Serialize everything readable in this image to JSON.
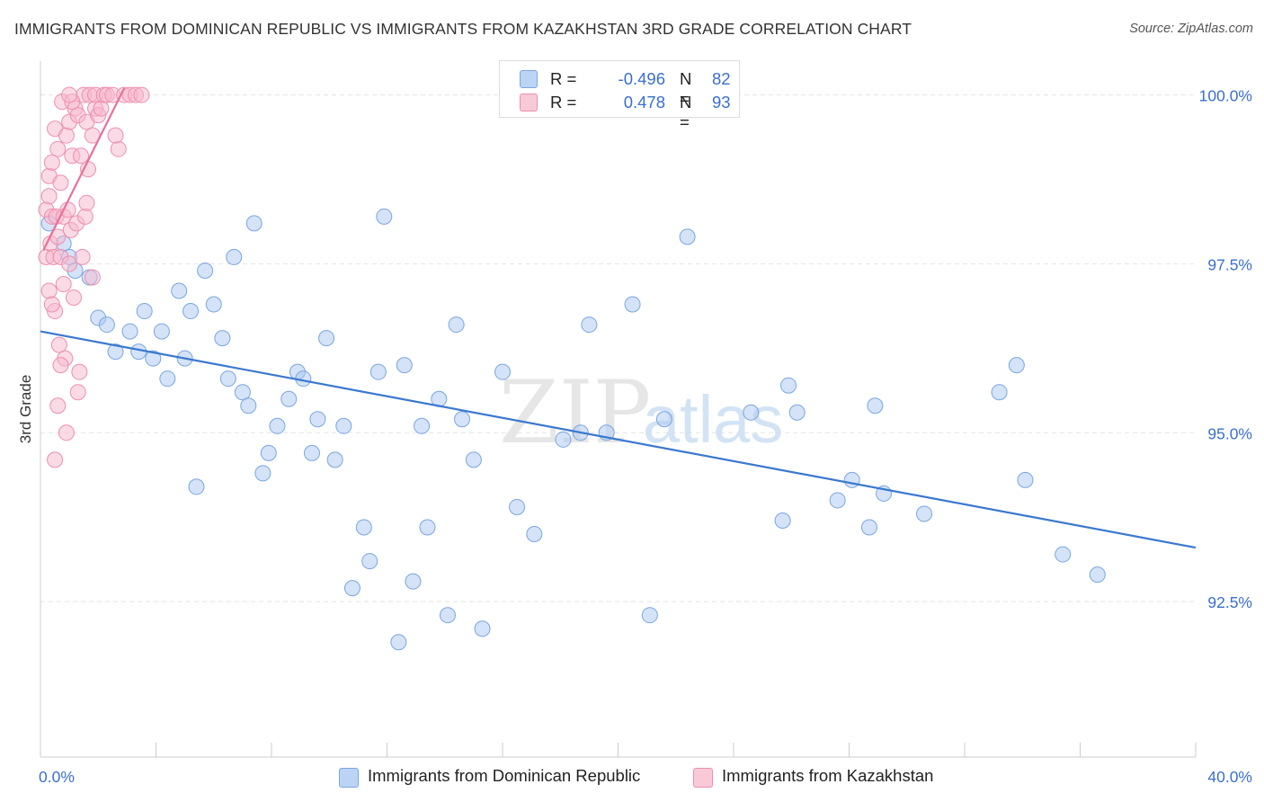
{
  "title": "IMMIGRANTS FROM DOMINICAN REPUBLIC VS IMMIGRANTS FROM KAZAKHSTAN 3RD GRADE CORRELATION CHART",
  "source": "Source: ZipAtlas.com",
  "watermark": {
    "zip": "ZIP",
    "atlas": "atlas"
  },
  "legend": {
    "r_label": "R =",
    "n_label": "N =",
    "rows": [
      {
        "r": "-0.496",
        "n": "82",
        "color": "#a9c8f2"
      },
      {
        "r": "0.478",
        "n": "93",
        "color": "#f6b8cc"
      }
    ]
  },
  "chart_data": {
    "type": "scatter",
    "title": "IMMIGRANTS FROM DOMINICAN REPUBLIC VS IMMIGRANTS FROM KAZAKHSTAN 3RD GRADE CORRELATION CHART",
    "xlabel": "",
    "ylabel": "3rd Grade",
    "xlim": [
      0,
      40
    ],
    "ylim": [
      90.2,
      100.5
    ],
    "x_tick_labels": [
      "0.0%",
      "40.0%"
    ],
    "y_ticks": [
      92.5,
      95.0,
      97.5,
      100.0
    ],
    "y_tick_labels": [
      "92.5%",
      "95.0%",
      "97.5%",
      "100.0%"
    ],
    "grid": true,
    "legend_position": "top-center",
    "series": [
      {
        "name": "Immigrants from Dominican Republic",
        "color": "#a9c8f2",
        "stroke": "#7aa6e0",
        "trend_color": "#3a78d0",
        "trend": {
          "x": [
            0,
            40
          ],
          "y": [
            96.5,
            93.3
          ]
        },
        "points": [
          [
            0.3,
            98.1
          ],
          [
            0.8,
            97.8
          ],
          [
            1.0,
            97.6
          ],
          [
            1.2,
            97.4
          ],
          [
            1.7,
            97.3
          ],
          [
            2.0,
            96.7
          ],
          [
            2.3,
            96.6
          ],
          [
            2.6,
            96.2
          ],
          [
            3.1,
            96.5
          ],
          [
            3.4,
            96.2
          ],
          [
            3.6,
            96.8
          ],
          [
            3.9,
            96.1
          ],
          [
            4.2,
            96.5
          ],
          [
            4.4,
            95.8
          ],
          [
            4.8,
            97.1
          ],
          [
            5.0,
            96.1
          ],
          [
            5.2,
            96.8
          ],
          [
            5.4,
            94.2
          ],
          [
            5.7,
            97.4
          ],
          [
            6.0,
            96.9
          ],
          [
            6.3,
            96.4
          ],
          [
            6.5,
            95.8
          ],
          [
            6.7,
            97.6
          ],
          [
            7.0,
            95.6
          ],
          [
            7.2,
            95.4
          ],
          [
            7.4,
            98.1
          ],
          [
            7.7,
            94.4
          ],
          [
            7.9,
            94.7
          ],
          [
            8.2,
            95.1
          ],
          [
            8.6,
            95.5
          ],
          [
            8.9,
            95.9
          ],
          [
            9.1,
            95.8
          ],
          [
            9.4,
            94.7
          ],
          [
            9.6,
            95.2
          ],
          [
            9.9,
            96.4
          ],
          [
            10.2,
            94.6
          ],
          [
            10.5,
            95.1
          ],
          [
            10.8,
            92.7
          ],
          [
            11.2,
            93.6
          ],
          [
            11.4,
            93.1
          ],
          [
            11.7,
            95.9
          ],
          [
            11.9,
            98.2
          ],
          [
            12.4,
            91.9
          ],
          [
            12.6,
            96.0
          ],
          [
            12.9,
            92.8
          ],
          [
            13.2,
            95.1
          ],
          [
            13.4,
            93.6
          ],
          [
            13.8,
            95.5
          ],
          [
            14.1,
            92.3
          ],
          [
            14.4,
            96.6
          ],
          [
            14.6,
            95.2
          ],
          [
            15.0,
            94.6
          ],
          [
            15.3,
            92.1
          ],
          [
            16.0,
            95.9
          ],
          [
            16.5,
            93.9
          ],
          [
            17.1,
            93.5
          ],
          [
            18.1,
            94.9
          ],
          [
            18.7,
            95.0
          ],
          [
            19.0,
            96.6
          ],
          [
            19.6,
            95.0
          ],
          [
            20.5,
            96.9
          ],
          [
            21.1,
            92.3
          ],
          [
            21.6,
            95.2
          ],
          [
            22.4,
            97.9
          ],
          [
            24.6,
            95.3
          ],
          [
            25.7,
            93.7
          ],
          [
            25.9,
            95.7
          ],
          [
            26.2,
            95.3
          ],
          [
            27.6,
            94.0
          ],
          [
            28.1,
            94.3
          ],
          [
            28.7,
            93.6
          ],
          [
            28.9,
            95.4
          ],
          [
            29.2,
            94.1
          ],
          [
            30.6,
            93.8
          ],
          [
            33.2,
            95.6
          ],
          [
            33.8,
            96.0
          ],
          [
            34.1,
            94.3
          ],
          [
            35.4,
            93.2
          ],
          [
            36.6,
            92.9
          ]
        ]
      },
      {
        "name": "Immigrants from Kazakhstan",
        "color": "#f6b8cc",
        "stroke": "#ee8eae",
        "trend_color": "#e8709a",
        "trend": {
          "x": [
            0.1,
            2.9
          ],
          "y": [
            97.7,
            100.1
          ]
        },
        "points": [
          [
            0.2,
            98.3
          ],
          [
            0.2,
            97.6
          ],
          [
            0.3,
            97.1
          ],
          [
            0.3,
            98.8
          ],
          [
            0.35,
            97.8
          ],
          [
            0.4,
            99.0
          ],
          [
            0.4,
            98.2
          ],
          [
            0.45,
            97.6
          ],
          [
            0.5,
            96.8
          ],
          [
            0.5,
            99.5
          ],
          [
            0.55,
            98.2
          ],
          [
            0.6,
            97.9
          ],
          [
            0.6,
            99.2
          ],
          [
            0.65,
            96.3
          ],
          [
            0.7,
            97.6
          ],
          [
            0.7,
            98.7
          ],
          [
            0.75,
            99.9
          ],
          [
            0.8,
            98.2
          ],
          [
            0.8,
            97.2
          ],
          [
            0.85,
            96.1
          ],
          [
            0.9,
            99.4
          ],
          [
            0.95,
            98.3
          ],
          [
            1.0,
            99.6
          ],
          [
            1.0,
            97.5
          ],
          [
            1.05,
            98.0
          ],
          [
            1.1,
            99.1
          ],
          [
            1.15,
            97.0
          ],
          [
            1.2,
            99.8
          ],
          [
            1.25,
            98.1
          ],
          [
            1.3,
            99.7
          ],
          [
            1.35,
            95.9
          ],
          [
            1.4,
            99.1
          ],
          [
            1.45,
            97.6
          ],
          [
            1.5,
            100.0
          ],
          [
            1.55,
            98.2
          ],
          [
            1.6,
            99.6
          ],
          [
            1.65,
            98.9
          ],
          [
            1.7,
            100.0
          ],
          [
            1.8,
            97.3
          ],
          [
            1.8,
            99.4
          ],
          [
            1.9,
            99.8
          ],
          [
            1.9,
            100.0
          ],
          [
            2.0,
            99.7
          ],
          [
            2.1,
            99.8
          ],
          [
            2.2,
            100.0
          ],
          [
            2.3,
            100.0
          ],
          [
            2.5,
            100.0
          ],
          [
            2.7,
            99.2
          ],
          [
            2.9,
            100.0
          ],
          [
            3.1,
            100.0
          ],
          [
            3.3,
            100.0
          ],
          [
            3.5,
            100.0
          ],
          [
            0.4,
            96.9
          ],
          [
            0.6,
            95.4
          ],
          [
            0.5,
            94.6
          ],
          [
            0.9,
            95.0
          ],
          [
            1.3,
            95.6
          ],
          [
            0.7,
            96.0
          ],
          [
            1.1,
            99.9
          ],
          [
            2.6,
            99.4
          ],
          [
            0.3,
            98.5
          ],
          [
            1.6,
            98.4
          ],
          [
            1.0,
            100.0
          ]
        ]
      }
    ]
  }
}
